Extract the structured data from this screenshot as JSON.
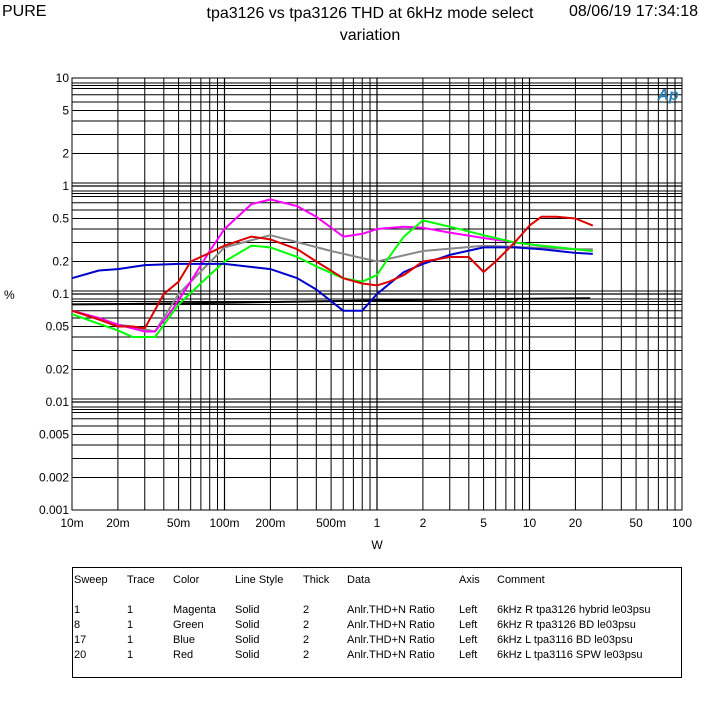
{
  "header": {
    "left": "PURE",
    "title": "tpa3126 vs tpa3126 THD at 6kHz mode select variation",
    "date": "08/06/19 17:34:18"
  },
  "logo_text": "Ap",
  "chart_data": {
    "type": "line",
    "title": "tpa3126 vs tpa3126 THD at 6kHz mode select variation",
    "xlabel": "W",
    "ylabel": "%",
    "x_scale": "log",
    "y_scale": "log",
    "xlim": [
      0.01,
      100
    ],
    "ylim": [
      0.001,
      10
    ],
    "grid": true,
    "x_ticks": [
      {
        "v": 0.01,
        "label": "10m"
      },
      {
        "v": 0.02,
        "label": "20m"
      },
      {
        "v": 0.05,
        "label": "50m"
      },
      {
        "v": 0.1,
        "label": "100m"
      },
      {
        "v": 0.2,
        "label": "200m"
      },
      {
        "v": 0.5,
        "label": "500m"
      },
      {
        "v": 1,
        "label": "1"
      },
      {
        "v": 2,
        "label": "2"
      },
      {
        "v": 5,
        "label": "5"
      },
      {
        "v": 10,
        "label": "10"
      },
      {
        "v": 20,
        "label": "20"
      },
      {
        "v": 50,
        "label": "50"
      },
      {
        "v": 100,
        "label": "100"
      }
    ],
    "y_ticks": [
      {
        "v": 0.001,
        "label": "0.001"
      },
      {
        "v": 0.002,
        "label": "0.002"
      },
      {
        "v": 0.005,
        "label": "0.005"
      },
      {
        "v": 0.01,
        "label": "0.01"
      },
      {
        "v": 0.02,
        "label": "0.02"
      },
      {
        "v": 0.05,
        "label": "0.05"
      },
      {
        "v": 0.1,
        "label": "0.1"
      },
      {
        "v": 0.2,
        "label": "0.2"
      },
      {
        "v": 0.5,
        "label": "0.5"
      },
      {
        "v": 1,
        "label": "1"
      },
      {
        "v": 2,
        "label": "2"
      },
      {
        "v": 5,
        "label": "5"
      },
      {
        "v": 10,
        "label": "10"
      }
    ],
    "series": [
      {
        "color": "#000000",
        "x": [
          0.01,
          0.03,
          0.1,
          0.3,
          1,
          3,
          10,
          25
        ],
        "y": [
          0.0801,
          0.0812,
          0.0831,
          0.0851,
          0.0871,
          0.0891,
          0.0902,
          0.0912
        ]
      },
      {
        "color": "#888888",
        "x": [
          0.01,
          0.015,
          0.02,
          0.025,
          0.03,
          0.035,
          0.05,
          0.1,
          0.2,
          0.5,
          1,
          2,
          5,
          10,
          20,
          26
        ],
        "y": [
          0.07,
          0.058,
          0.052,
          0.05,
          0.047,
          0.045,
          0.1,
          0.27,
          0.35,
          0.25,
          0.2,
          0.25,
          0.28,
          0.27,
          0.26,
          0.26
        ]
      },
      {
        "color": "#ff00ff",
        "x": [
          0.01,
          0.015,
          0.02,
          0.025,
          0.03,
          0.035,
          0.045,
          0.06,
          0.08,
          0.1,
          0.15,
          0.2,
          0.3,
          0.4,
          0.6,
          0.8,
          1,
          1.5,
          2,
          3,
          5,
          8,
          12,
          20,
          26
        ],
        "y": [
          0.07,
          0.06,
          0.052,
          0.048,
          0.045,
          0.045,
          0.07,
          0.13,
          0.25,
          0.4,
          0.68,
          0.75,
          0.65,
          0.52,
          0.34,
          0.36,
          0.4,
          0.42,
          0.41,
          0.37,
          0.33,
          0.3,
          0.28,
          0.26,
          0.25
        ]
      },
      {
        "color": "#00ff00",
        "x": [
          0.01,
          0.015,
          0.02,
          0.025,
          0.03,
          0.035,
          0.05,
          0.08,
          0.1,
          0.15,
          0.2,
          0.3,
          0.4,
          0.6,
          0.8,
          1,
          1.2,
          1.5,
          2,
          3,
          5,
          8,
          12,
          20,
          26
        ],
        "y": [
          0.065,
          0.053,
          0.046,
          0.04,
          0.04,
          0.04,
          0.08,
          0.15,
          0.2,
          0.28,
          0.27,
          0.22,
          0.18,
          0.14,
          0.13,
          0.15,
          0.22,
          0.34,
          0.48,
          0.42,
          0.35,
          0.3,
          0.28,
          0.26,
          0.25
        ]
      },
      {
        "color": "#0000cc",
        "x": [
          0.01,
          0.015,
          0.02,
          0.03,
          0.05,
          0.1,
          0.2,
          0.3,
          0.4,
          0.6,
          0.8,
          1,
          1.5,
          2,
          3,
          5,
          8,
          12,
          20,
          26
        ],
        "y": [
          0.14,
          0.165,
          0.17,
          0.185,
          0.19,
          0.19,
          0.17,
          0.14,
          0.11,
          0.07,
          0.07,
          0.1,
          0.16,
          0.19,
          0.23,
          0.27,
          0.27,
          0.26,
          0.24,
          0.235
        ]
      },
      {
        "color": "#dd0000",
        "x": [
          0.01,
          0.015,
          0.02,
          0.025,
          0.03,
          0.04,
          0.05,
          0.06,
          0.08,
          0.1,
          0.15,
          0.2,
          0.3,
          0.4,
          0.6,
          0.8,
          1,
          1.2,
          1.5,
          2,
          2.5,
          3,
          4,
          5,
          6,
          8,
          10,
          12,
          15,
          20,
          26
        ],
        "y": [
          0.07,
          0.058,
          0.05,
          0.05,
          0.048,
          0.1,
          0.13,
          0.2,
          0.24,
          0.28,
          0.34,
          0.32,
          0.26,
          0.2,
          0.14,
          0.125,
          0.12,
          0.13,
          0.15,
          0.2,
          0.21,
          0.22,
          0.22,
          0.16,
          0.2,
          0.3,
          0.43,
          0.52,
          0.52,
          0.5,
          0.43
        ]
      }
    ]
  },
  "legend": {
    "headers": [
      "Sweep",
      "Trace",
      "Color",
      "Line Style",
      "Thick",
      "Data",
      "Axis",
      "Comment"
    ],
    "rows": [
      [
        "1",
        "1",
        "Magenta",
        "Solid",
        "2",
        "Anlr.THD+N Ratio",
        "Left",
        "6kHz R tpa3126 hybrid le03psu"
      ],
      [
        "8",
        "1",
        "Green",
        "Solid",
        "2",
        "Anlr.THD+N Ratio",
        "Left",
        "6kHz R tpa3126 BD le03psu"
      ],
      [
        "17",
        "1",
        "Blue",
        "Solid",
        "2",
        "Anlr.THD+N Ratio",
        "Left",
        "6kHz L tpa3116 BD le03psu"
      ],
      [
        "20",
        "1",
        "Red",
        "Solid",
        "2",
        "Anlr.THD+N Ratio",
        "Left",
        "6kHz L tpa3116 SPW le03psu"
      ]
    ]
  }
}
